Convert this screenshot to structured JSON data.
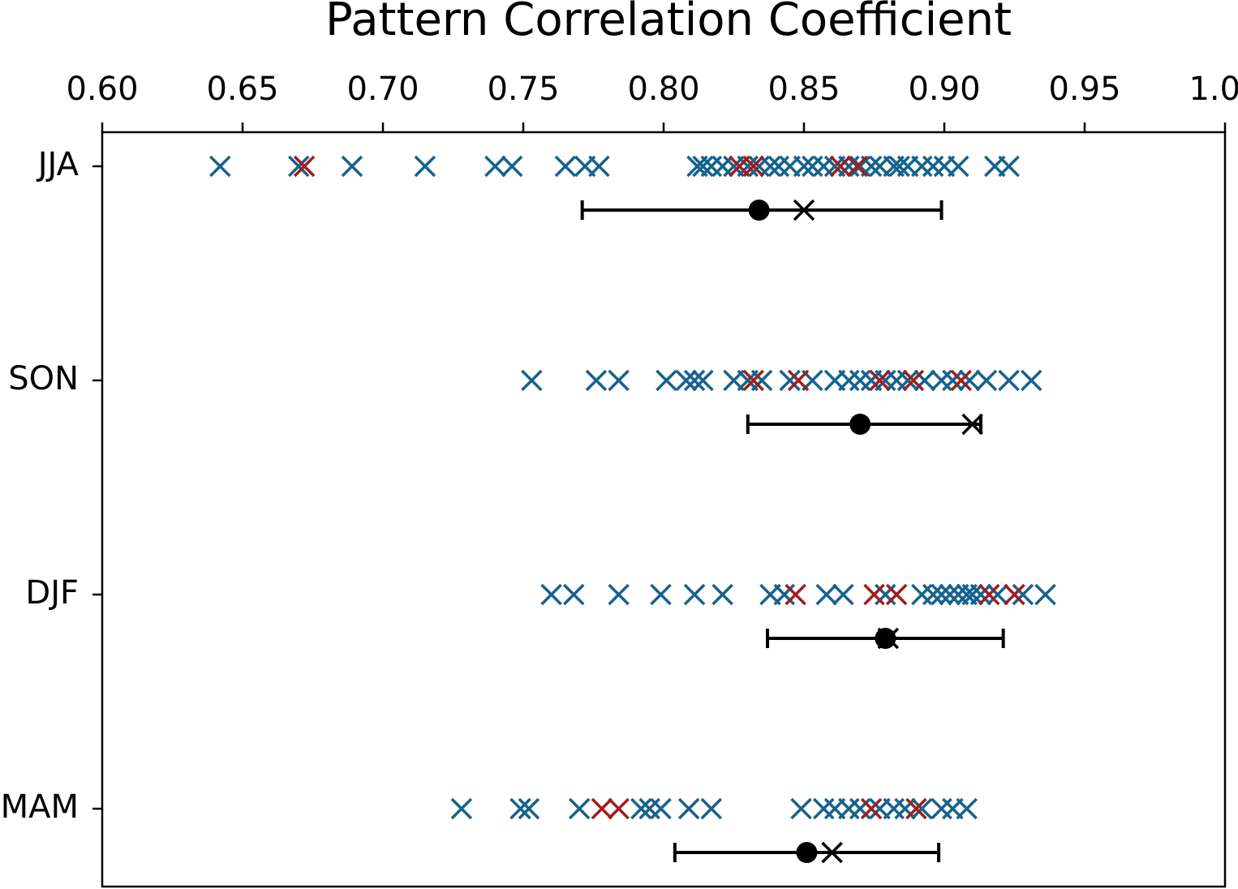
{
  "chart_data": {
    "type": "strip",
    "title": "Pattern Correlation Coefficient",
    "categories": [
      "JJA",
      "SON",
      "DJF",
      "MAM"
    ],
    "xlim": [
      0.6,
      1.0
    ],
    "xticks": [
      {
        "value": 0.6,
        "label": "0.60"
      },
      {
        "value": 0.65,
        "label": "0.65"
      },
      {
        "value": 0.7,
        "label": "0.70"
      },
      {
        "value": 0.75,
        "label": "0.75"
      },
      {
        "value": 0.8,
        "label": "0.80"
      },
      {
        "value": 0.85,
        "label": "0.85"
      },
      {
        "value": 0.9,
        "label": "0.90"
      },
      {
        "value": 0.95,
        "label": "0.95"
      },
      {
        "value": 1.0,
        "label": "1.00"
      }
    ],
    "series": [
      {
        "color": "#16628e",
        "values": [
          [
            0.642,
            0.67,
            0.689,
            0.715,
            0.74,
            0.746,
            0.765,
            0.772,
            0.777,
            0.812,
            0.814,
            0.817,
            0.821,
            0.825,
            0.83,
            0.834,
            0.838,
            0.841,
            0.845,
            0.85,
            0.853,
            0.857,
            0.861,
            0.866,
            0.87,
            0.874,
            0.877,
            0.882,
            0.884,
            0.887,
            0.892,
            0.896,
            0.9,
            0.905,
            0.918,
            0.923
          ],
          [
            0.753,
            0.776,
            0.784,
            0.801,
            0.808,
            0.811,
            0.814,
            0.825,
            0.83,
            0.835,
            0.845,
            0.853,
            0.861,
            0.866,
            0.87,
            0.874,
            0.879,
            0.883,
            0.887,
            0.893,
            0.899,
            0.903,
            0.909,
            0.915,
            0.923,
            0.931
          ],
          [
            0.76,
            0.768,
            0.784,
            0.799,
            0.811,
            0.821,
            0.838,
            0.843,
            0.858,
            0.864,
            0.879,
            0.892,
            0.896,
            0.899,
            0.902,
            0.905,
            0.908,
            0.91,
            0.913,
            0.919,
            0.928,
            0.936
          ],
          [
            0.728,
            0.749,
            0.752,
            0.77,
            0.792,
            0.795,
            0.799,
            0.809,
            0.817,
            0.849,
            0.857,
            0.861,
            0.866,
            0.87,
            0.877,
            0.882,
            0.886,
            0.892,
            0.899,
            0.903,
            0.908
          ]
        ]
      },
      {
        "color": "#a11d1d",
        "values": [
          [
            0.672,
            0.827,
            0.832,
            0.863,
            0.869
          ],
          [
            0.832,
            0.848,
            0.877,
            0.889,
            0.906
          ],
          [
            0.847,
            0.875,
            0.883,
            0.916,
            0.925
          ],
          [
            0.778,
            0.784,
            0.874,
            0.89
          ]
        ]
      }
    ],
    "summary": {
      "color": "#000000",
      "dot": [
        0.834,
        0.87,
        0.879,
        0.851
      ],
      "cross": [
        0.85,
        0.91,
        0.88,
        0.86
      ],
      "low": [
        0.771,
        0.83,
        0.837,
        0.804
      ],
      "high": [
        0.899,
        0.913,
        0.921,
        0.898
      ]
    }
  }
}
